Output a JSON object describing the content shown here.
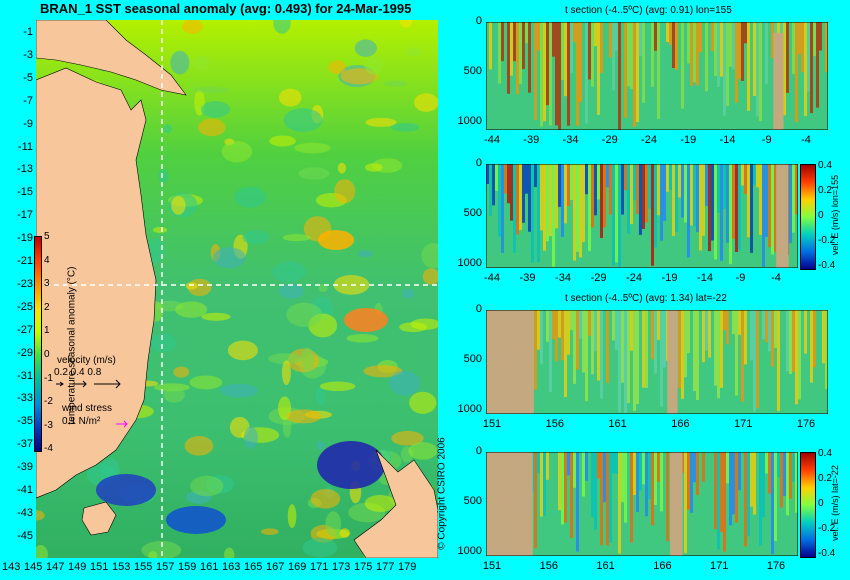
{
  "chart_data": [
    {
      "type": "heatmap",
      "title": "BRAN_1 SST seasonal anomaly (avg: 0.493) for 24-Mar-1995",
      "x_ticks": [
        "143",
        "145",
        "147",
        "149",
        "151",
        "153",
        "155",
        "157",
        "159",
        "161",
        "163",
        "165",
        "167",
        "169",
        "171",
        "173",
        "175",
        "177",
        "179"
      ],
      "y_ticks": [
        "-1",
        "-3",
        "-5",
        "-7",
        "-9",
        "-11",
        "-13",
        "-15",
        "-17",
        "-19",
        "-21",
        "-23",
        "-25",
        "-27",
        "-29",
        "-31",
        "-33",
        "-35",
        "-37",
        "-39",
        "-41",
        "-43",
        "-45"
      ],
      "colorbar_label": "temperature seasonal anomaly (°C)",
      "colorbar_ticks": [
        "5",
        "4",
        "3",
        "2",
        "1",
        "0",
        "-1",
        "-2",
        "-3",
        "-4"
      ],
      "colorbar_range": [
        -4,
        5
      ],
      "crosshair": {
        "lon": 155,
        "lat": -22
      },
      "velocity_legend": {
        "label": "velocity (m/s)",
        "values": "0.2 0.4 0.8"
      },
      "wind_legend": {
        "label": "wind stress",
        "value": "0.1 N/m²"
      },
      "copyright": "© Copyright CSIRO 2006"
    },
    {
      "type": "heatmap",
      "title": "t section (-4..5ºC) (avg: 0.91) lon=155",
      "x_ticks": [
        "-44",
        "-39",
        "-34",
        "-29",
        "-24",
        "-19",
        "-14",
        "-9",
        "-4"
      ],
      "y_ticks": [
        "0",
        "500",
        "1000"
      ],
      "ylim": [
        0,
        1050
      ]
    },
    {
      "type": "heatmap",
      "title": "",
      "x_ticks": [
        "-44",
        "-39",
        "-34",
        "-29",
        "-24",
        "-19",
        "-14",
        "-9",
        "-4"
      ],
      "y_ticks": [
        "0",
        "500",
        "1000"
      ],
      "colorbar_label": "vel. E (m/s) lon=155",
      "colorbar_ticks": [
        "0.4",
        "0.2",
        "0",
        "-0.2",
        "-0.4"
      ],
      "colorbar_range": [
        -0.4,
        0.4
      ]
    },
    {
      "type": "heatmap",
      "title": "t section (-4..5ºC) (avg: 1.34) lat=-22",
      "x_ticks": [
        "151",
        "156",
        "161",
        "166",
        "171",
        "176"
      ],
      "y_ticks": [
        "0",
        "500",
        "1000"
      ]
    },
    {
      "type": "heatmap",
      "title": "",
      "x_ticks": [
        "151",
        "156",
        "161",
        "166",
        "171",
        "176"
      ],
      "y_ticks": [
        "0",
        "500",
        "1000"
      ],
      "colorbar_label": "vel. E (m/s) lat=-22",
      "colorbar_ticks": [
        "0.4",
        "0.2",
        "0",
        "-0.2",
        "-0.4"
      ],
      "colorbar_range": [
        -0.4,
        0.4
      ]
    }
  ],
  "colors": {
    "background": "#00ffff",
    "land": "#f7c69a",
    "section_land": "#c4a880"
  }
}
